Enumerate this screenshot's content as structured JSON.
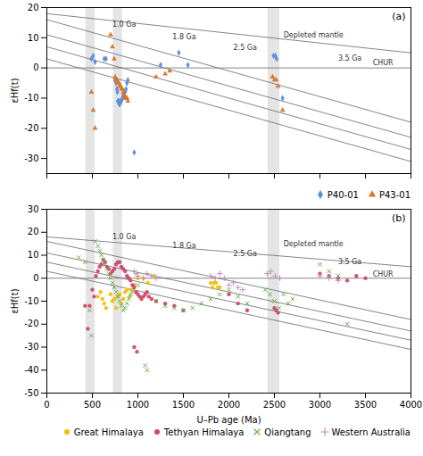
{
  "chart_data": [
    {
      "type": "scatter",
      "title": "(a)",
      "ylabel": "εHf(t)",
      "tick_labels": "y",
      "xlim": [
        0,
        4000
      ],
      "ylim": [
        -35,
        20
      ],
      "xticks": [
        0,
        500,
        1000,
        1500,
        2000,
        2500,
        3000,
        3500,
        4000
      ],
      "yticks": [
        -30,
        -20,
        -10,
        0,
        10,
        20
      ],
      "legend": "lower right",
      "bands": [
        [
          430,
          530
        ],
        [
          730,
          830
        ],
        [
          2430,
          2560
        ]
      ],
      "band_color": "#d8d8d8",
      "lines": [
        {
          "x": [
            0,
            4000
          ],
          "y": [
            0,
            0
          ],
          "color": "#666666"
        },
        {
          "x": [
            0,
            4000
          ],
          "y": [
            18,
            5
          ],
          "color": "#666666"
        },
        {
          "x": [
            0,
            4000
          ],
          "y": [
            16,
            -18
          ],
          "color": "#666666"
        },
        {
          "x": [
            0,
            4000
          ],
          "y": [
            11,
            -23
          ],
          "color": "#666666"
        },
        {
          "x": [
            0,
            4000
          ],
          "y": [
            7,
            -27
          ],
          "color": "#666666"
        },
        {
          "x": [
            0,
            4000
          ],
          "y": [
            3,
            -31
          ],
          "color": "#666666"
        }
      ],
      "annotations": [
        {
          "text": "1.0 Ga",
          "x": 720,
          "y": 13.5
        },
        {
          "text": "1.8 Ga",
          "x": 1380,
          "y": 9.5
        },
        {
          "text": "2.5 Ga",
          "x": 2050,
          "y": 6.0
        },
        {
          "text": "3.5 Ga",
          "x": 3200,
          "y": 2.5
        },
        {
          "text": "Depleted mantle",
          "x": 2600,
          "y": 10.0
        },
        {
          "text": "CHUR",
          "x": 3580,
          "y": 0.8
        }
      ],
      "series": [
        {
          "name": "P40-01",
          "color": "#5B8DD9",
          "marker": "diamond",
          "values": [
            [
              490,
              3
            ],
            [
              510,
              4
            ],
            [
              530,
              2
            ],
            [
              630,
              3
            ],
            [
              650,
              3
            ],
            [
              750,
              -4
            ],
            [
              760,
              -5
            ],
            [
              770,
              -7
            ],
            [
              775,
              -8
            ],
            [
              780,
              -11
            ],
            [
              785,
              -11
            ],
            [
              790,
              -11
            ],
            [
              795,
              -12
            ],
            [
              800,
              -12
            ],
            [
              810,
              -11
            ],
            [
              820,
              -11
            ],
            [
              830,
              -10
            ],
            [
              840,
              -9
            ],
            [
              850,
              -9
            ],
            [
              860,
              -8
            ],
            [
              870,
              -7
            ],
            [
              880,
              -5
            ],
            [
              890,
              -4
            ],
            [
              960,
              -28
            ],
            [
              1250,
              1
            ],
            [
              1450,
              5
            ],
            [
              1550,
              1
            ],
            [
              2490,
              4
            ],
            [
              2510,
              4
            ],
            [
              2525,
              3
            ],
            [
              2590,
              -10
            ]
          ]
        },
        {
          "name": "P43-01",
          "color": "#D4772A",
          "marker": "triangle",
          "values": [
            [
              490,
              -8
            ],
            [
              510,
              -14
            ],
            [
              530,
              -20
            ],
            [
              700,
              11
            ],
            [
              720,
              7
            ],
            [
              740,
              3
            ],
            [
              750,
              -3
            ],
            [
              760,
              -4
            ],
            [
              770,
              -4
            ],
            [
              780,
              -5
            ],
            [
              790,
              -5
            ],
            [
              800,
              -6
            ],
            [
              810,
              -6
            ],
            [
              820,
              -7
            ],
            [
              830,
              -7
            ],
            [
              840,
              -8
            ],
            [
              850,
              -9
            ],
            [
              860,
              -10
            ],
            [
              870,
              -10
            ],
            [
              880,
              -10
            ],
            [
              890,
              -11
            ],
            [
              1200,
              -3
            ],
            [
              1300,
              -2
            ],
            [
              1350,
              -1
            ],
            [
              2480,
              -3
            ],
            [
              2500,
              -4
            ],
            [
              2520,
              -4
            ],
            [
              2540,
              -6
            ],
            [
              2590,
              -14
            ]
          ]
        }
      ]
    },
    {
      "type": "scatter",
      "title": "(b)",
      "xlabel": "U–Pb age (Ma)",
      "ylabel": "εHf(t)",
      "xlim": [
        0,
        4000
      ],
      "ylim": [
        -50,
        30
      ],
      "xticks": [
        0,
        500,
        1000,
        1500,
        2000,
        2500,
        3000,
        3500,
        4000
      ],
      "yticks": [
        -50,
        -40,
        -30,
        -20,
        -10,
        0,
        10,
        20,
        30
      ],
      "legend": "lower right",
      "bands": [
        [
          430,
          530
        ],
        [
          730,
          830
        ],
        [
          2430,
          2560
        ]
      ],
      "band_color": "#d8d8d8",
      "lines": [
        {
          "x": [
            0,
            4000
          ],
          "y": [
            0,
            0
          ],
          "color": "#666666"
        },
        {
          "x": [
            0,
            4000
          ],
          "y": [
            18,
            5
          ],
          "color": "#666666"
        },
        {
          "x": [
            0,
            4000
          ],
          "y": [
            16,
            -18
          ],
          "color": "#666666"
        },
        {
          "x": [
            0,
            4000
          ],
          "y": [
            11,
            -23
          ],
          "color": "#666666"
        },
        {
          "x": [
            0,
            4000
          ],
          "y": [
            7,
            -27
          ],
          "color": "#666666"
        },
        {
          "x": [
            0,
            4000
          ],
          "y": [
            3,
            -31
          ],
          "color": "#666666"
        }
      ],
      "annotations": [
        {
          "text": "1.0 Ga",
          "x": 720,
          "y": 17
        },
        {
          "text": "1.8 Ga",
          "x": 1380,
          "y": 13
        },
        {
          "text": "2.5 Ga",
          "x": 2050,
          "y": 9.5
        },
        {
          "text": "3.5 Ga",
          "x": 3200,
          "y": 6
        },
        {
          "text": "Depleted mantle",
          "x": 2600,
          "y": 14.0
        },
        {
          "text": "CHUR",
          "x": 3580,
          "y": 0.8
        }
      ],
      "series": [
        {
          "name": "Great Himalaya",
          "color": "#F0C010",
          "marker": "circle",
          "values": [
            [
              560,
              -8
            ],
            [
              590,
              -6
            ],
            [
              610,
              -9
            ],
            [
              630,
              -11
            ],
            [
              650,
              -13
            ],
            [
              700,
              -7
            ],
            [
              720,
              -10
            ],
            [
              740,
              -9
            ],
            [
              760,
              -13
            ],
            [
              780,
              -8
            ],
            [
              800,
              -7
            ],
            [
              820,
              -11
            ],
            [
              840,
              -9
            ],
            [
              860,
              -6
            ],
            [
              880,
              -5
            ],
            [
              910,
              -8
            ],
            [
              930,
              -5
            ],
            [
              960,
              -3
            ],
            [
              1000,
              0
            ],
            [
              1060,
              0
            ],
            [
              1110,
              -2
            ],
            [
              1180,
              1
            ],
            [
              1800,
              -2
            ],
            [
              1820,
              -4
            ],
            [
              1840,
              -2
            ],
            [
              1860,
              -2
            ],
            [
              1880,
              -4
            ],
            [
              1900,
              -4
            ],
            [
              1840,
              -2
            ]
          ]
        },
        {
          "name": "Tethyan Himalaya",
          "color": "#D04870",
          "marker": "circle",
          "values": [
            [
              420,
              -12
            ],
            [
              450,
              -22
            ],
            [
              470,
              -12
            ],
            [
              500,
              -5
            ],
            [
              520,
              -8
            ],
            [
              540,
              1
            ],
            [
              560,
              3
            ],
            [
              580,
              5
            ],
            [
              600,
              6
            ],
            [
              620,
              8
            ],
            [
              640,
              7
            ],
            [
              660,
              5
            ],
            [
              680,
              4
            ],
            [
              700,
              2
            ],
            [
              720,
              3
            ],
            [
              740,
              4
            ],
            [
              760,
              6
            ],
            [
              780,
              7
            ],
            [
              800,
              7
            ],
            [
              820,
              5
            ],
            [
              840,
              4
            ],
            [
              860,
              3
            ],
            [
              880,
              1
            ],
            [
              900,
              0
            ],
            [
              920,
              -1
            ],
            [
              940,
              -3
            ],
            [
              960,
              -4
            ],
            [
              980,
              -6
            ],
            [
              1000,
              -7
            ],
            [
              1020,
              -8
            ],
            [
              1040,
              -9
            ],
            [
              1060,
              -8
            ],
            [
              1080,
              -7
            ],
            [
              1100,
              -6
            ],
            [
              1120,
              -8
            ],
            [
              1150,
              -9
            ],
            [
              1200,
              -10
            ],
            [
              1300,
              -11
            ],
            [
              1400,
              -12
            ],
            [
              1500,
              -14
            ],
            [
              2000,
              -7
            ],
            [
              2100,
              -11
            ],
            [
              2200,
              -14
            ],
            [
              2500,
              -13
            ],
            [
              2520,
              -14
            ],
            [
              2540,
              -15
            ],
            [
              3000,
              2
            ],
            [
              3100,
              1
            ],
            [
              3200,
              0
            ],
            [
              3300,
              -1
            ],
            [
              3400,
              1
            ],
            [
              3500,
              0
            ],
            [
              960,
              -30
            ],
            [
              990,
              -32
            ]
          ]
        },
        {
          "name": "Qiangtang",
          "color": "#60B040",
          "marker": "x",
          "values": [
            [
              350,
              9
            ],
            [
              420,
              7
            ],
            [
              470,
              -14
            ],
            [
              490,
              -25
            ],
            [
              530,
              16
            ],
            [
              560,
              14
            ],
            [
              580,
              12
            ],
            [
              600,
              10
            ],
            [
              620,
              8
            ],
            [
              640,
              6
            ],
            [
              660,
              4
            ],
            [
              680,
              2
            ],
            [
              700,
              0
            ],
            [
              720,
              -2
            ],
            [
              740,
              -4
            ],
            [
              760,
              -6
            ],
            [
              780,
              -8
            ],
            [
              800,
              -10
            ],
            [
              820,
              -12
            ],
            [
              840,
              -14
            ],
            [
              860,
              -13
            ],
            [
              880,
              -11
            ],
            [
              900,
              -9
            ],
            [
              920,
              -7
            ],
            [
              940,
              -6
            ],
            [
              1000,
              -3
            ],
            [
              1080,
              -38
            ],
            [
              1100,
              -40
            ],
            [
              1200,
              -10
            ],
            [
              1300,
              -12
            ],
            [
              1400,
              -13
            ],
            [
              1500,
              -14
            ],
            [
              1600,
              -13
            ],
            [
              1700,
              -11
            ],
            [
              1800,
              -9
            ],
            [
              1900,
              -7
            ],
            [
              2000,
              -5
            ],
            [
              2100,
              -8
            ],
            [
              2200,
              -11
            ],
            [
              2400,
              -5
            ],
            [
              2450,
              -7
            ],
            [
              2500,
              -10
            ],
            [
              2550,
              -13
            ],
            [
              2600,
              -7
            ],
            [
              2650,
              -11
            ],
            [
              2700,
              -9
            ],
            [
              3000,
              6
            ],
            [
              3100,
              3
            ],
            [
              3200,
              1
            ],
            [
              3300,
              -20
            ]
          ]
        },
        {
          "name": "Western Australia",
          "color": "#C090C0",
          "marker": "plus",
          "values": [
            [
              960,
              3
            ],
            [
              980,
              2
            ],
            [
              1000,
              1
            ],
            [
              1060,
              0
            ],
            [
              1100,
              2
            ],
            [
              1150,
              1
            ],
            [
              1200,
              0
            ],
            [
              1800,
              1
            ],
            [
              1850,
              0
            ],
            [
              1900,
              2
            ],
            [
              1950,
              0
            ],
            [
              2000,
              -3
            ],
            [
              2050,
              -2
            ],
            [
              2100,
              -4
            ],
            [
              2150,
              -5
            ],
            [
              2420,
              2
            ],
            [
              2460,
              3
            ],
            [
              2510,
              1
            ],
            [
              2560,
              0
            ],
            [
              3000,
              1
            ],
            [
              3100,
              0
            ],
            [
              3200,
              -1
            ]
          ]
        }
      ]
    }
  ]
}
